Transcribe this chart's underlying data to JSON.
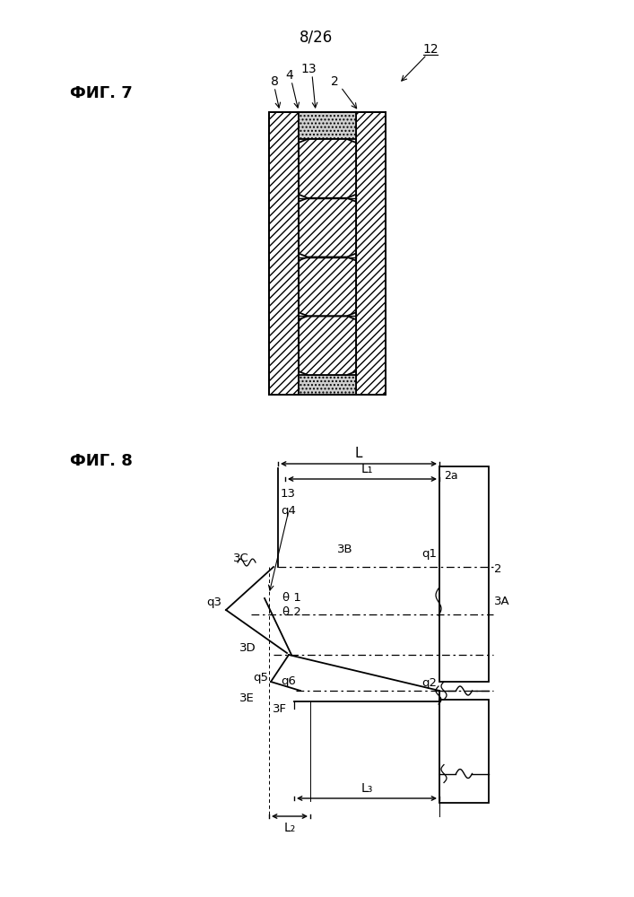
{
  "page_label": "8/26",
  "fig7_label": "ФИГ. 7",
  "fig8_label": "ФИГ. 8",
  "bg_color": "#ffffff",
  "line_color": "#000000"
}
